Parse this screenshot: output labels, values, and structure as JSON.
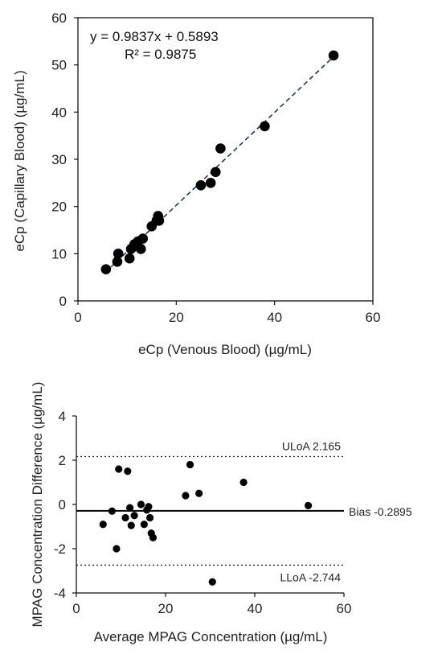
{
  "chart_data": [
    {
      "type": "scatter",
      "xlabel": "eCp (Venous Blood) (µg/mL)",
      "ylabel": "eCp (Capillary Blood) (µg/mL)",
      "xlim": [
        0,
        60
      ],
      "ylim": [
        0,
        60
      ],
      "xticks": [
        0,
        20,
        40,
        60
      ],
      "yticks": [
        0,
        10,
        20,
        30,
        40,
        50,
        60
      ],
      "grid": false,
      "equation": "y = 0.9837x + 0.5893",
      "r_squared": "R² = 0.9875",
      "trendline": {
        "slope": 0.9837,
        "intercept": 0.5893,
        "x_range": [
          5.5,
          52
        ],
        "style": "dashed"
      },
      "points": [
        {
          "x": 5.7,
          "y": 6.7
        },
        {
          "x": 8.0,
          "y": 8.3
        },
        {
          "x": 8.2,
          "y": 10.0
        },
        {
          "x": 10.5,
          "y": 9.0
        },
        {
          "x": 10.8,
          "y": 11.0
        },
        {
          "x": 11.5,
          "y": 12.0
        },
        {
          "x": 12.2,
          "y": 12.6
        },
        {
          "x": 12.8,
          "y": 11.0
        },
        {
          "x": 13.2,
          "y": 13.2
        },
        {
          "x": 15.0,
          "y": 15.8
        },
        {
          "x": 16.0,
          "y": 17.0
        },
        {
          "x": 16.3,
          "y": 18.0
        },
        {
          "x": 16.5,
          "y": 17.0
        },
        {
          "x": 25.0,
          "y": 24.5
        },
        {
          "x": 27.0,
          "y": 25.0
        },
        {
          "x": 28.0,
          "y": 27.3
        },
        {
          "x": 29.0,
          "y": 32.3
        },
        {
          "x": 38.0,
          "y": 37.0
        },
        {
          "x": 52.0,
          "y": 52.0
        }
      ]
    },
    {
      "type": "scatter",
      "xlabel": "Average MPAG Concentration  (µg/mL)",
      "ylabel": "MPAG Concentration Difference (µg/mL)",
      "xlim": [
        0,
        60
      ],
      "ylim": [
        -4,
        4
      ],
      "xticks": [
        0,
        20,
        40,
        60
      ],
      "yticks": [
        -4,
        -2,
        0,
        2,
        4
      ],
      "grid": false,
      "reference_lines": [
        {
          "label": "ULoA 2.165",
          "value": 2.165,
          "style": "dotted"
        },
        {
          "label": "Bias  -0.2895",
          "value": -0.2895,
          "style": "solid"
        },
        {
          "label": "LLoA -2.744",
          "value": -2.744,
          "style": "dotted"
        }
      ],
      "points": [
        {
          "x": 6.0,
          "y": -0.9
        },
        {
          "x": 8.0,
          "y": -0.3
        },
        {
          "x": 9.0,
          "y": -2.0
        },
        {
          "x": 9.5,
          "y": 1.6
        },
        {
          "x": 11.0,
          "y": -0.6
        },
        {
          "x": 11.5,
          "y": 1.5
        },
        {
          "x": 12.0,
          "y": -0.15
        },
        {
          "x": 12.3,
          "y": -0.95
        },
        {
          "x": 13.0,
          "y": -0.5
        },
        {
          "x": 14.5,
          "y": 0.0
        },
        {
          "x": 15.2,
          "y": -0.9
        },
        {
          "x": 15.8,
          "y": -0.25
        },
        {
          "x": 16.2,
          "y": -0.1
        },
        {
          "x": 16.5,
          "y": -0.6
        },
        {
          "x": 16.8,
          "y": -1.3
        },
        {
          "x": 17.2,
          "y": -1.5
        },
        {
          "x": 24.5,
          "y": 0.4
        },
        {
          "x": 25.5,
          "y": 1.8
        },
        {
          "x": 27.5,
          "y": 0.5
        },
        {
          "x": 30.5,
          "y": -3.5
        },
        {
          "x": 37.5,
          "y": 1.0
        },
        {
          "x": 52.0,
          "y": -0.05
        }
      ]
    }
  ]
}
